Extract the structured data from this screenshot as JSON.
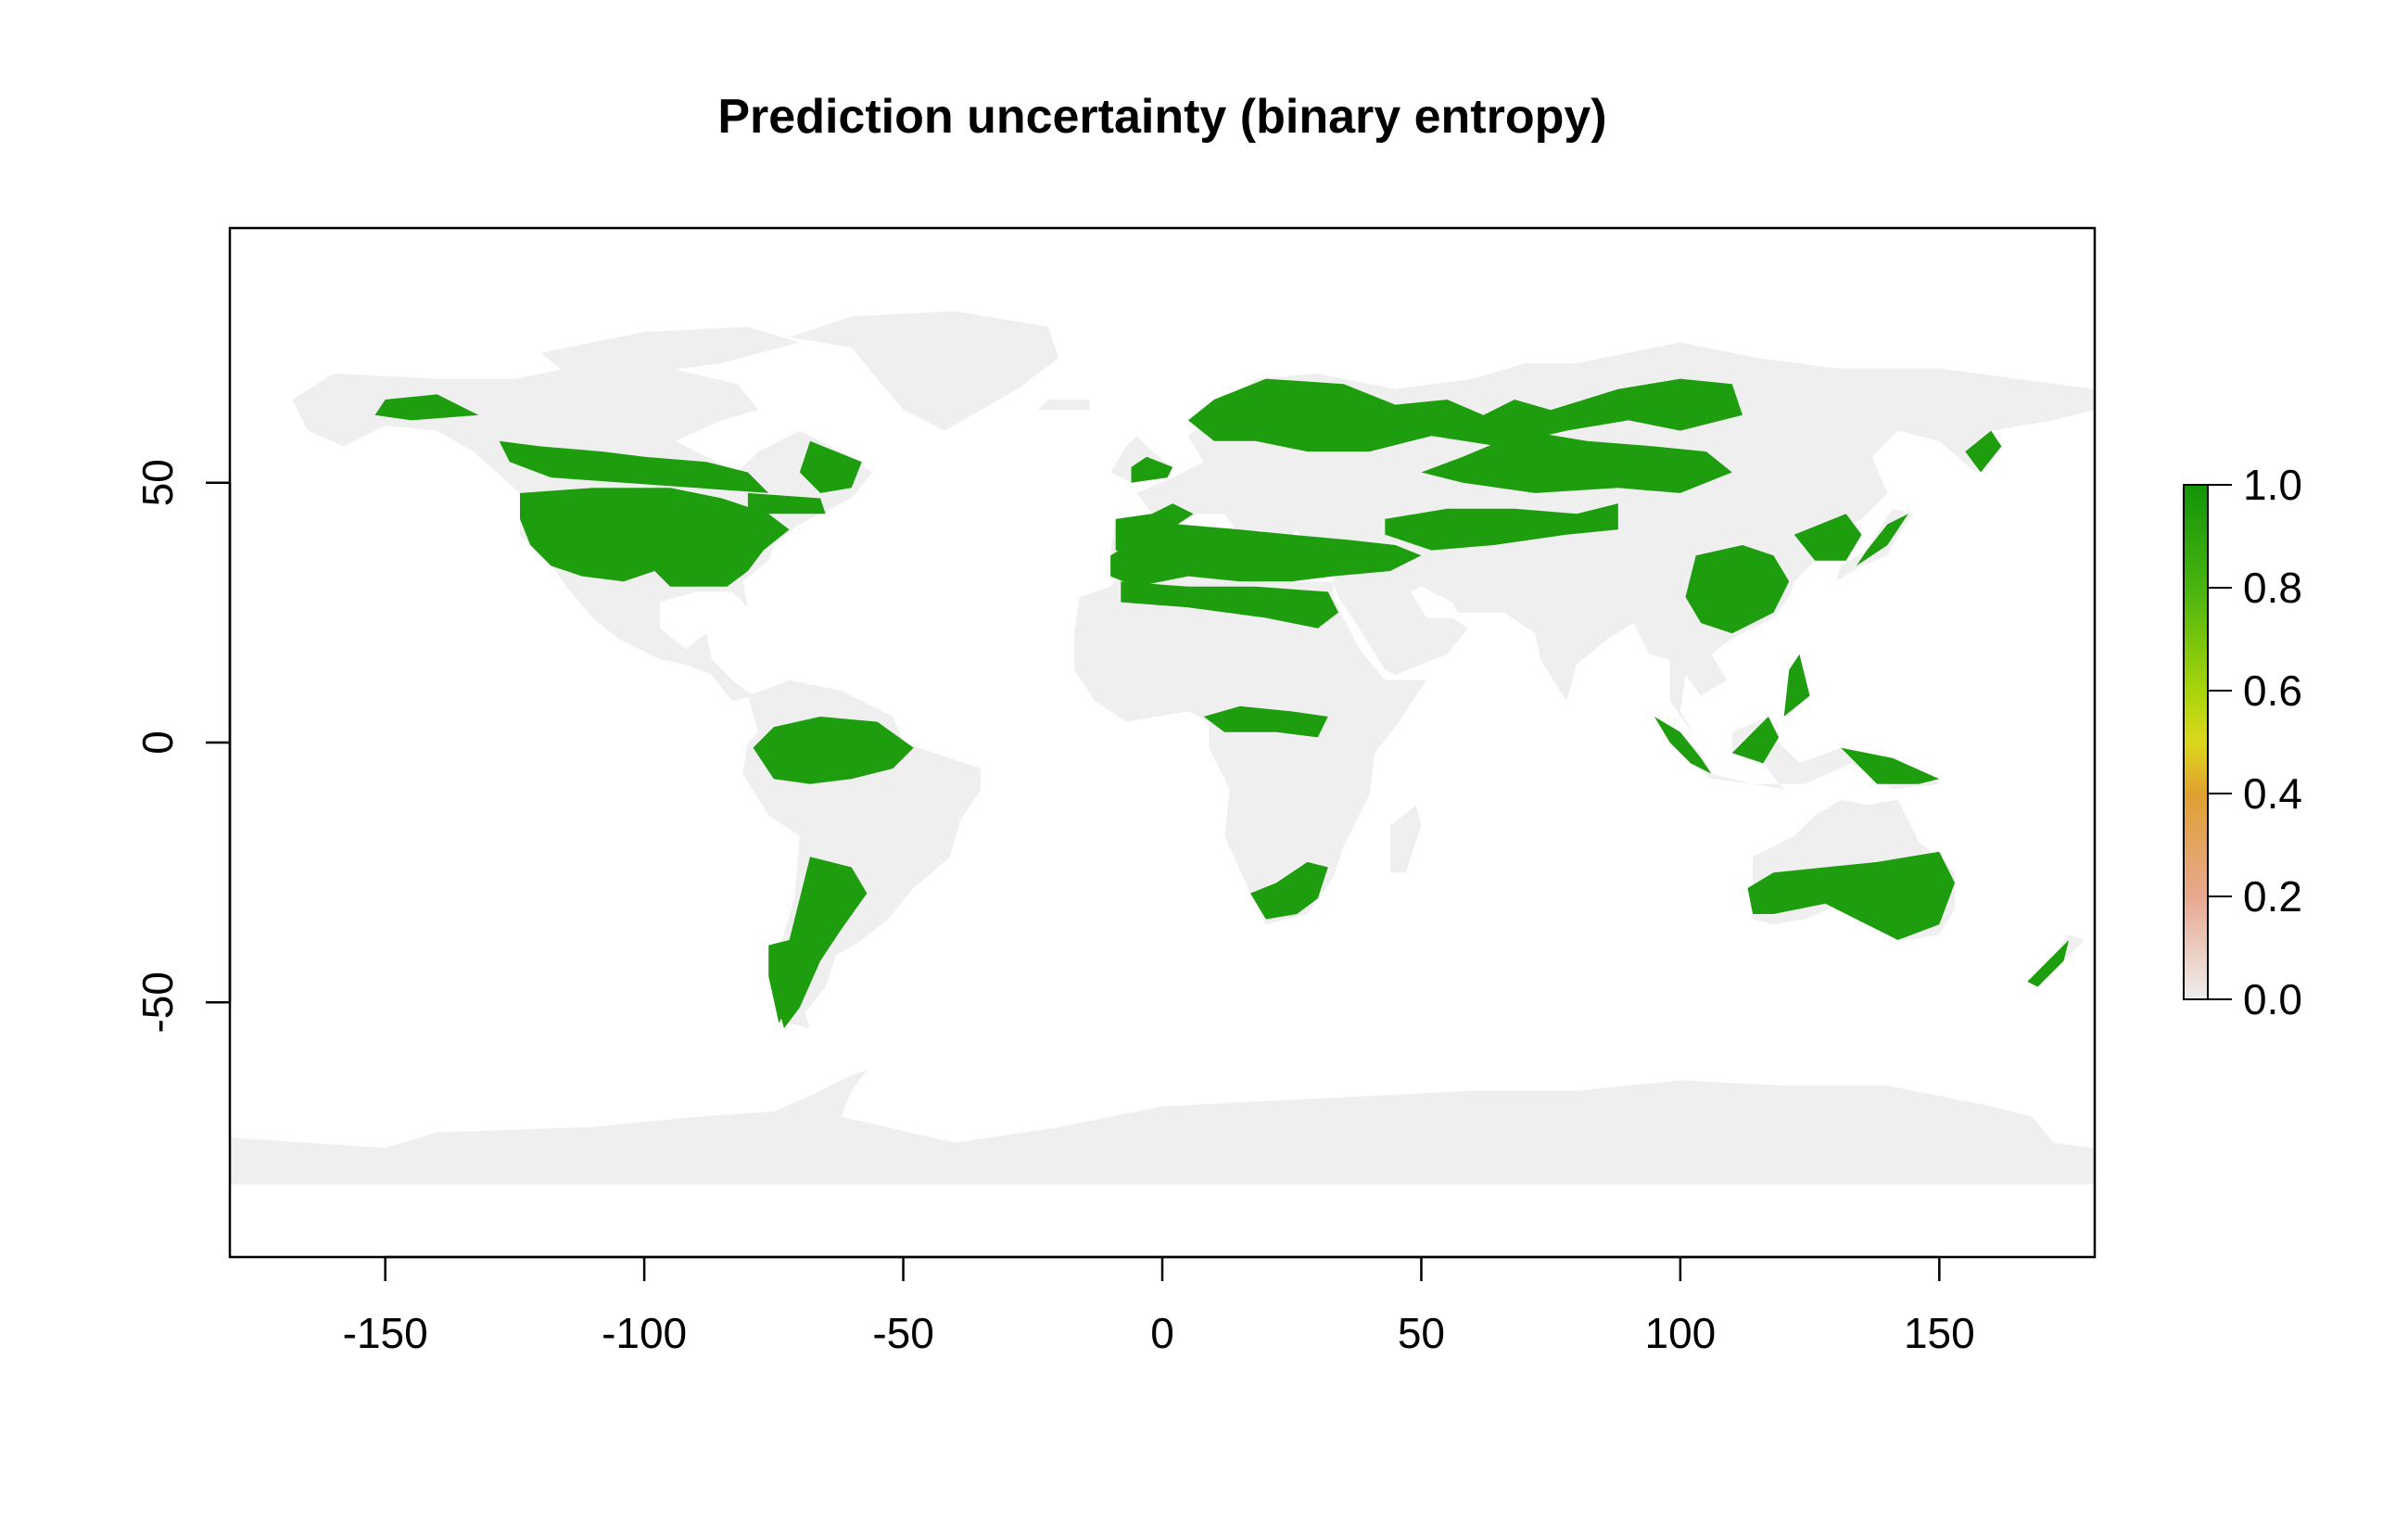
{
  "map": {
    "title": "Prediction uncertainty (binary entropy)",
    "x_axis": {
      "ticks": [
        -150,
        -100,
        -50,
        0,
        50,
        100,
        150
      ],
      "range": [
        -180,
        180
      ]
    },
    "y_axis": {
      "ticks": [
        -50,
        0,
        50
      ],
      "range": [
        -99,
        99
      ]
    },
    "land_color": "#efefef",
    "high_color": "#1e9e0e",
    "legend": {
      "placement": "right",
      "ticks": [
        "1.0",
        "0.8",
        "0.6",
        "0.4",
        "0.2",
        "0.0"
      ],
      "gradient": [
        {
          "value": 0.0,
          "color": "#eeeeee"
        },
        {
          "value": 0.2,
          "color": "#e8a890"
        },
        {
          "value": 0.4,
          "color": "#e0a030"
        },
        {
          "value": 0.5,
          "color": "#dcd81c"
        },
        {
          "value": 0.6,
          "color": "#a8d40c"
        },
        {
          "value": 0.8,
          "color": "#48b410"
        },
        {
          "value": 1.0,
          "color": "#129408"
        }
      ]
    }
  }
}
